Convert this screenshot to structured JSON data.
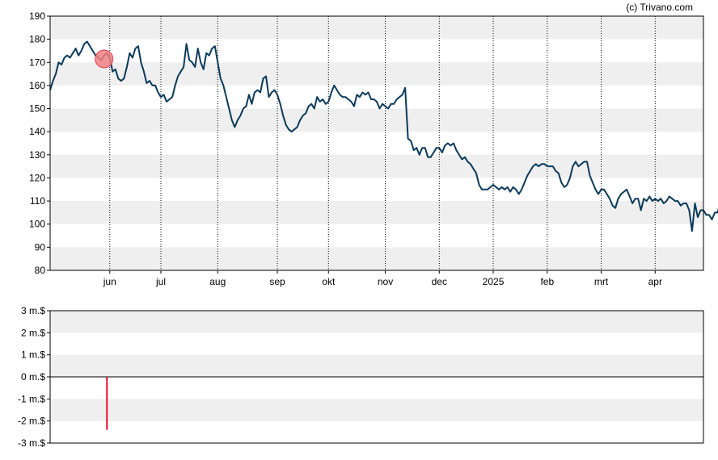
{
  "credit": "(c) Trivano.com",
  "colors": {
    "price_line": "#0b3a5a",
    "marker_fill": "#f08080",
    "marker_stroke": "#e04050",
    "band": "#efefef",
    "volume_bar": "#e8102e",
    "grid_dotted": "#000000"
  },
  "chart_data": [
    {
      "type": "line",
      "name": "price",
      "ylim": [
        80,
        190
      ],
      "y_ticks": [
        "80",
        "90",
        "100",
        "110",
        "120",
        "130",
        "140",
        "150",
        "160",
        "170",
        "180",
        "190"
      ],
      "x_tick_labels": [
        "jun",
        "jul",
        "aug",
        "sep",
        "okt",
        "nov",
        "dec",
        "2025",
        "feb",
        "mrt",
        "apr"
      ],
      "grid": "vertical dotted at month ticks, alternating horizontal bands",
      "x_index_range": [
        0,
        230
      ],
      "x_tick_index": [
        21,
        39,
        59,
        80,
        98,
        118,
        137,
        156,
        175,
        194,
        213
      ],
      "series": [
        {
          "values": [
            158,
            162,
            165,
            170,
            169,
            172,
            173,
            172,
            174,
            176,
            173,
            175,
            178,
            179,
            177,
            175,
            173,
            172,
            171,
            173,
            174,
            172,
            166,
            167,
            163,
            162,
            163,
            168,
            174,
            172,
            176,
            177,
            170,
            166,
            161,
            162,
            160,
            160,
            157,
            155,
            156,
            153,
            154,
            155,
            160,
            164,
            166,
            168,
            178,
            171,
            170,
            168,
            176,
            170,
            167,
            174,
            173,
            176,
            177,
            170,
            163,
            160,
            155,
            150,
            145,
            142,
            145,
            147,
            150,
            151,
            156,
            152,
            157,
            158,
            157,
            163,
            164,
            155,
            157,
            158,
            156,
            152,
            147,
            143,
            141,
            140,
            141,
            142,
            145,
            147,
            148,
            151,
            152,
            150,
            155,
            153,
            154,
            152,
            153,
            157,
            160,
            158,
            156,
            155,
            155,
            154,
            153,
            151,
            156,
            155,
            157,
            156,
            157,
            154,
            154,
            153,
            150,
            152,
            151,
            150,
            152,
            152,
            154,
            155,
            156,
            159,
            137,
            136,
            132,
            133,
            130,
            133,
            133,
            129,
            129,
            131,
            133,
            133,
            131,
            134,
            135,
            134,
            135,
            132,
            130,
            128,
            129,
            127,
            126,
            124,
            122,
            117,
            115,
            115,
            115,
            116,
            117,
            116,
            115,
            116,
            115,
            116,
            114,
            116,
            115,
            113,
            115,
            118,
            121,
            123,
            125,
            126,
            125,
            126,
            126,
            125,
            125,
            125,
            123,
            122,
            118,
            116,
            117,
            120,
            125,
            127,
            125,
            126,
            127,
            127,
            121,
            118,
            115,
            113,
            115,
            115,
            113,
            111,
            108,
            107,
            111,
            113,
            114,
            115,
            112,
            109,
            111,
            111,
            106,
            111,
            110,
            112,
            110,
            111,
            110,
            111,
            109,
            110,
            112,
            111,
            110,
            110,
            108,
            109,
            109,
            106,
            97,
            109,
            103,
            106,
            106,
            104,
            104,
            102,
            105,
            105,
            110,
            111,
            112,
            113,
            113
          ]
        }
      ],
      "marker": {
        "index": 19,
        "value": 171.5
      }
    },
    {
      "type": "bar",
      "name": "volume",
      "ylim": [
        -3,
        3
      ],
      "y_ticks": [
        "-3 m.$",
        "-2 m.$",
        "-1 m.$",
        "0 m.$",
        "1 m.$",
        "2 m.$",
        "3 m.$"
      ],
      "bars": [
        {
          "index": 20,
          "value": -2.4
        }
      ]
    }
  ]
}
